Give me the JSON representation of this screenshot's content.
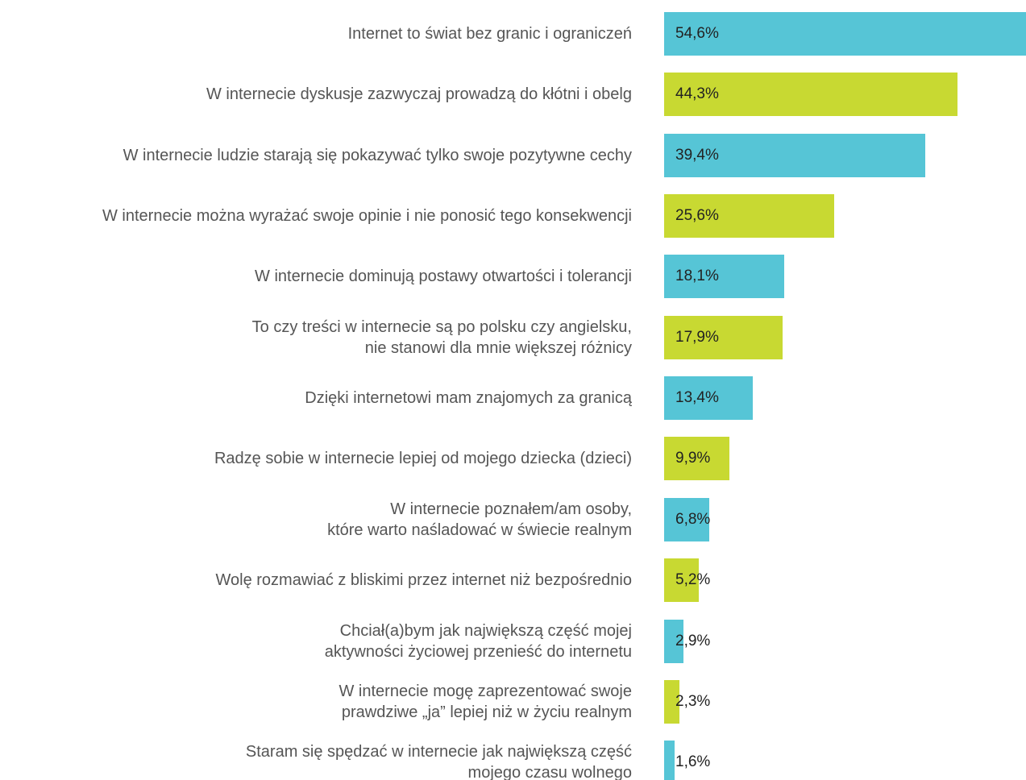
{
  "chart_data": {
    "type": "bar",
    "orientation": "horizontal",
    "categories": [
      "Internet to świat bez granic i ograniczeń",
      "W internecie dyskusje zazwyczaj prowadzą do kłótni i obelg",
      "W internecie ludzie starają się pokazywać tylko swoje pozytywne cechy",
      "W internecie można wyrażać swoje opinie i nie ponosić tego konsekwencji",
      "W internecie dominują postawy otwartości i tolerancji",
      "To czy treści w internecie są po polsku czy angielsku,\nnie stanowi dla mnie większej różnicy",
      "Dzięki internetowi mam znajomych za granicą",
      "Radzę sobie w internecie lepiej od mojego dziecka (dzieci)",
      "W internecie poznałem/am osoby,\nktóre warto naśladować w świecie realnym",
      "Wolę rozmawiać z bliskimi przez internet niż bezpośrednio",
      "Chciał(a)bym jak największą część mojej\naktywności życiowej przenieść do internetu",
      "W internecie mogę zaprezentować swoje\nprawdziwe „ja” lepiej niż w życiu realnym",
      "Staram się spędzać w internecie jak największą część\nmojego czasu wolnego"
    ],
    "values": [
      54.6,
      44.3,
      39.4,
      25.6,
      18.1,
      17.9,
      13.4,
      9.9,
      6.8,
      5.2,
      2.9,
      2.3,
      1.6
    ],
    "value_labels": [
      "54,6%",
      "44,3%",
      "39,4%",
      "25,6%",
      "18,1%",
      "17,9%",
      "13,4%",
      "9,9%",
      "6,8%",
      "5,2%",
      "2,9%",
      "2,3%",
      "1,6%"
    ],
    "colors": [
      "#56c5d6",
      "#c8d932",
      "#56c5d6",
      "#c8d932",
      "#56c5d6",
      "#c8d932",
      "#56c5d6",
      "#c8d932",
      "#56c5d6",
      "#c8d932",
      "#56c5d6",
      "#c8d932",
      "#56c5d6"
    ]
  }
}
